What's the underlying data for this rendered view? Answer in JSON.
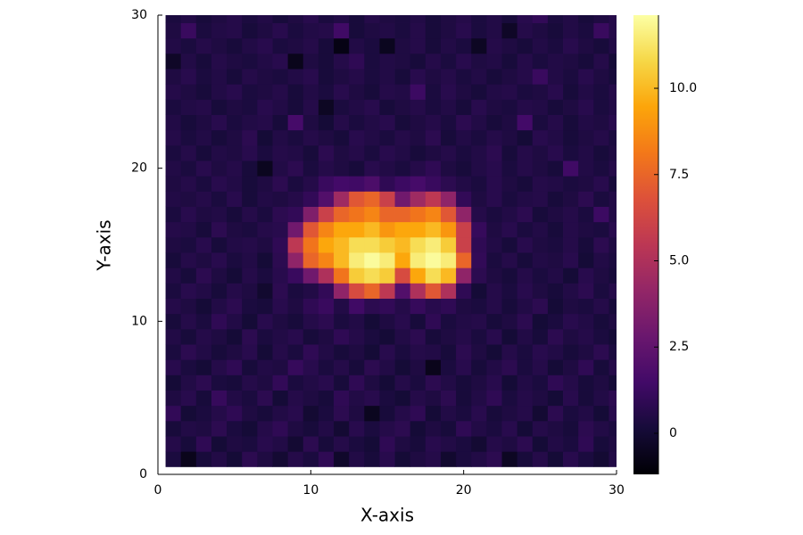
{
  "chart_data": {
    "type": "heatmap",
    "xlabel": "X-axis",
    "ylabel": "Y-axis",
    "colormap": "inferno",
    "x": [
      1,
      2,
      3,
      4,
      5,
      6,
      7,
      8,
      9,
      10,
      11,
      12,
      13,
      14,
      15,
      16,
      17,
      18,
      19,
      20,
      21,
      22,
      23,
      24,
      25,
      26,
      27,
      28,
      29,
      30
    ],
    "y": [
      1,
      2,
      3,
      4,
      5,
      6,
      7,
      8,
      9,
      10,
      11,
      12,
      13,
      14,
      15,
      16,
      17,
      18,
      19,
      20,
      21,
      22,
      23,
      24,
      25,
      26,
      27,
      28,
      29,
      30
    ],
    "z": [
      [
        0.3,
        -0.6,
        0.2,
        0.5,
        0.1,
        0.8,
        0.4,
        0.0,
        0.6,
        0.3,
        0.9,
        -0.2,
        0.5,
        0.2,
        0.7,
        0.1,
        0.4,
        0.6,
        -0.1,
        0.3,
        0.5,
        0.8,
        -0.4,
        0.2,
        0.6,
        0.1,
        0.7,
        0.3,
        0.0,
        0.5
      ],
      [
        0.6,
        0.2,
        0.9,
        0.1,
        0.4,
        0.3,
        0.7,
        0.5,
        0.0,
        0.8,
        0.2,
        0.6,
        0.3,
        0.1,
        0.9,
        0.4,
        0.2,
        0.7,
        0.5,
        0.3,
        0.0,
        0.6,
        0.4,
        0.8,
        0.1,
        0.5,
        0.3,
        0.9,
        0.2,
        0.4
      ],
      [
        0.2,
        0.5,
        0.4,
        0.8,
        0.3,
        0.1,
        0.6,
        0.9,
        0.4,
        0.2,
        0.5,
        0.0,
        0.7,
        0.3,
        0.6,
        0.8,
        0.1,
        0.4,
        0.2,
        0.9,
        0.5,
        0.3,
        0.7,
        0.1,
        0.6,
        0.4,
        0.2,
        0.8,
        0.5,
        0.3
      ],
      [
        1.0,
        0.1,
        0.3,
        0.6,
        0.9,
        0.4,
        0.2,
        0.5,
        0.7,
        0.0,
        0.3,
        0.8,
        0.4,
        -0.5,
        0.2,
        0.6,
        0.9,
        0.1,
        0.5,
        0.3,
        0.7,
        0.2,
        0.4,
        0.6,
        0.0,
        0.8,
        0.3,
        0.5,
        0.1,
        0.7
      ],
      [
        0.4,
        0.7,
        0.2,
        1.1,
        0.5,
        0.3,
        0.8,
        0.1,
        0.6,
        0.4,
        0.2,
        0.9,
        0.5,
        0.7,
        0.3,
        0.1,
        0.6,
        0.4,
        0.8,
        0.2,
        0.5,
        0.9,
        0.3,
        0.6,
        0.4,
        0.1,
        0.7,
        0.2,
        0.5,
        0.8
      ],
      [
        0.1,
        0.5,
        0.8,
        0.3,
        0.2,
        0.6,
        0.4,
        1.0,
        0.3,
        0.5,
        0.7,
        0.2,
        0.9,
        0.4,
        0.1,
        0.6,
        0.3,
        0.8,
        0.5,
        0.2,
        0.4,
        0.7,
        0.1,
        0.5,
        0.3,
        0.9,
        0.6,
        0.2,
        0.4,
        0.1
      ],
      [
        0.7,
        0.3,
        0.1,
        0.6,
        0.9,
        0.2,
        0.5,
        0.4,
        1.1,
        0.7,
        0.3,
        0.6,
        0.2,
        0.8,
        0.5,
        0.1,
        0.4,
        -0.6,
        0.3,
        0.7,
        0.2,
        0.5,
        0.8,
        0.3,
        0.6,
        0.1,
        0.4,
        0.9,
        0.2,
        0.6
      ],
      [
        0.3,
        0.8,
        0.5,
        0.2,
        0.4,
        0.7,
        0.1,
        0.6,
        0.3,
        0.9,
        0.5,
        0.2,
        0.4,
        0.1,
        0.7,
        0.3,
        0.6,
        0.5,
        0.2,
        0.8,
        0.4,
        0.1,
        0.6,
        0.3,
        0.7,
        0.5,
        0.2,
        0.4,
        0.8,
        0.3
      ],
      [
        0.5,
        0.2,
        0.6,
        0.4,
        0.1,
        0.8,
        0.3,
        0.5,
        0.7,
        0.2,
        0.4,
        0.9,
        0.6,
        0.3,
        0.1,
        0.5,
        0.8,
        0.2,
        0.4,
        0.6,
        0.3,
        0.7,
        0.1,
        0.5,
        0.2,
        0.8,
        0.4,
        0.6,
        0.3,
        0.1
      ],
      [
        0.2,
        0.6,
        0.3,
        0.9,
        0.5,
        0.1,
        0.7,
        0.4,
        0.2,
        0.6,
        0.8,
        0.3,
        0.5,
        0.1,
        0.4,
        0.7,
        0.2,
        0.9,
        0.3,
        0.5,
        0.6,
        0.2,
        0.4,
        0.8,
        0.1,
        0.3,
        0.7,
        0.5,
        0.2,
        0.4
      ],
      [
        0.6,
        0.4,
        0.1,
        0.5,
        0.8,
        0.3,
        0.2,
        0.7,
        0.4,
        0.9,
        1.2,
        0.5,
        1.4,
        0.8,
        1.0,
        0.6,
        1.1,
        0.7,
        0.9,
        0.4,
        0.3,
        0.6,
        0.2,
        0.5,
        0.8,
        0.1,
        0.4,
        0.3,
        0.6,
        0.2
      ],
      [
        0.3,
        0.7,
        0.5,
        0.2,
        0.6,
        0.4,
        -0.1,
        0.8,
        0.3,
        0.5,
        1.0,
        4.0,
        6.5,
        7.5,
        5.5,
        2.0,
        5.0,
        7.0,
        5.0,
        0.9,
        0.1,
        0.6,
        0.3,
        0.7,
        0.4,
        0.2,
        0.5,
        0.8,
        0.3,
        0.6
      ],
      [
        0.5,
        0.2,
        0.8,
        0.4,
        0.1,
        0.6,
        0.3,
        0.7,
        1.2,
        3.0,
        5.0,
        8.0,
        10.5,
        11.0,
        10.5,
        6.5,
        9.5,
        11.0,
        10.0,
        4.0,
        0.8,
        0.4,
        0.2,
        0.6,
        0.3,
        0.5,
        0.1,
        0.7,
        0.4,
        0.2
      ],
      [
        0.2,
        0.6,
        0.4,
        0.7,
        0.3,
        0.5,
        0.1,
        0.8,
        4.0,
        7.5,
        8.5,
        10.0,
        11.5,
        12.0,
        11.5,
        9.5,
        11.5,
        12.0,
        11.5,
        7.5,
        1.0,
        0.3,
        0.6,
        0.2,
        0.5,
        0.4,
        0.7,
        0.1,
        0.5,
        0.3
      ],
      [
        0.4,
        0.3,
        0.7,
        0.2,
        0.5,
        0.6,
        0.4,
        0.9,
        5.5,
        8.0,
        9.5,
        10.0,
        11.0,
        11.0,
        10.5,
        10.0,
        11.0,
        11.5,
        10.5,
        6.0,
        0.9,
        0.5,
        0.2,
        0.7,
        0.4,
        0.3,
        0.6,
        0.2,
        0.8,
        0.4
      ],
      [
        0.6,
        0.5,
        0.2,
        0.8,
        0.4,
        0.3,
        0.6,
        0.7,
        3.0,
        7.0,
        8.5,
        9.5,
        9.5,
        10.0,
        9.0,
        9.5,
        9.5,
        10.0,
        9.0,
        6.0,
        1.1,
        0.4,
        0.7,
        0.3,
        0.5,
        0.2,
        0.6,
        0.4,
        0.3,
        0.7
      ],
      [
        0.3,
        0.7,
        0.4,
        0.5,
        0.2,
        0.6,
        0.3,
        0.8,
        1.0,
        3.5,
        6.0,
        7.5,
        8.0,
        8.5,
        7.5,
        7.5,
        8.0,
        8.5,
        7.0,
        4.0,
        0.6,
        0.3,
        0.5,
        0.8,
        0.2,
        0.4,
        0.6,
        0.3,
        1.3,
        0.5
      ],
      [
        0.5,
        0.4,
        0.6,
        0.3,
        0.7,
        0.2,
        0.5,
        0.4,
        0.6,
        1.0,
        2.0,
        4.5,
        7.0,
        7.5,
        6.0,
        3.0,
        4.5,
        5.5,
        4.0,
        1.0,
        0.4,
        0.7,
        0.3,
        0.5,
        0.6,
        0.2,
        0.4,
        0.8,
        0.3,
        0.5
      ],
      [
        0.4,
        0.6,
        0.3,
        0.7,
        0.5,
        0.2,
        0.4,
        0.8,
        0.3,
        0.6,
        1.2,
        1.5,
        1.4,
        1.8,
        0.9,
        1.3,
        1.6,
        1.2,
        0.8,
        0.5,
        0.3,
        0.7,
        0.4,
        0.2,
        0.6,
        0.5,
        0.3,
        0.4,
        0.7,
        0.2
      ],
      [
        0.5,
        0.3,
        0.7,
        0.4,
        0.6,
        0.2,
        -0.5,
        0.5,
        0.8,
        0.3,
        0.6,
        0.4,
        0.2,
        0.7,
        0.5,
        0.3,
        0.6,
        0.9,
        0.4,
        0.2,
        0.5,
        0.7,
        0.3,
        0.6,
        0.4,
        0.2,
        1.4,
        0.5,
        0.3,
        0.6
      ],
      [
        0.3,
        0.6,
        0.2,
        0.5,
        0.4,
        0.7,
        0.3,
        0.6,
        0.5,
        0.2,
        0.8,
        0.4,
        0.6,
        0.3,
        0.7,
        0.5,
        0.2,
        0.4,
        0.6,
        0.3,
        0.5,
        0.8,
        0.2,
        0.6,
        0.4,
        0.7,
        0.3,
        0.5,
        0.2,
        0.4
      ],
      [
        0.6,
        0.3,
        0.5,
        0.2,
        0.4,
        0.8,
        0.1,
        0.5,
        0.3,
        0.6,
        0.4,
        0.2,
        0.7,
        0.5,
        0.3,
        0.6,
        0.4,
        0.8,
        0.2,
        0.5,
        0.3,
        0.6,
        0.4,
        0.1,
        0.7,
        0.5,
        0.2,
        0.4,
        0.6,
        0.3
      ],
      [
        0.5,
        0.2,
        0.4,
        0.7,
        0.3,
        0.5,
        0.6,
        0.2,
        1.6,
        0.4,
        0.1,
        0.6,
        0.3,
        0.5,
        0.7,
        0.2,
        0.4,
        0.6,
        0.3,
        0.8,
        0.5,
        0.2,
        0.4,
        1.5,
        0.3,
        0.6,
        0.2,
        0.5,
        0.4,
        0.7
      ],
      [
        0.3,
        0.5,
        0.6,
        0.2,
        0.4,
        0.3,
        0.7,
        0.5,
        0.2,
        0.6,
        -0.4,
        0.3,
        0.5,
        0.7,
        0.2,
        0.4,
        0.6,
        0.3,
        0.5,
        0.2,
        0.7,
        0.4,
        0.3,
        0.6,
        0.5,
        0.2,
        0.4,
        0.7,
        0.3,
        0.5
      ],
      [
        0.6,
        0.4,
        0.2,
        0.5,
        0.7,
        0.3,
        0.4,
        0.6,
        0.2,
        0.5,
        0.3,
        0.7,
        0.4,
        0.2,
        0.6,
        0.5,
        1.3,
        0.3,
        0.7,
        0.4,
        0.2,
        0.5,
        0.6,
        0.3,
        0.4,
        0.7,
        0.2,
        0.5,
        0.3,
        0.6
      ],
      [
        0.4,
        0.7,
        0.3,
        0.5,
        0.2,
        0.6,
        0.4,
        0.3,
        0.5,
        0.7,
        0.2,
        0.4,
        0.6,
        0.3,
        0.5,
        0.2,
        0.7,
        0.4,
        0.6,
        0.3,
        0.5,
        0.2,
        0.4,
        0.6,
        1.2,
        0.5,
        0.3,
        0.7,
        0.4,
        0.2
      ],
      [
        -0.3,
        0.5,
        0.2,
        0.6,
        0.4,
        0.3,
        0.5,
        0.7,
        -0.6,
        0.4,
        0.2,
        0.6,
        0.9,
        0.3,
        0.5,
        0.4,
        0.2,
        0.6,
        0.3,
        0.7,
        0.4,
        0.5,
        0.2,
        0.6,
        0.3,
        0.5,
        0.4,
        0.2,
        0.6,
        0.1
      ],
      [
        0.5,
        0.3,
        0.6,
        0.4,
        0.2,
        0.5,
        0.7,
        0.3,
        0.4,
        0.6,
        0.2,
        -0.8,
        0.5,
        0.3,
        -0.5,
        0.4,
        0.6,
        0.2,
        0.5,
        0.3,
        -0.4,
        0.6,
        0.4,
        0.2,
        0.5,
        0.3,
        0.7,
        0.4,
        0.2,
        0.5
      ],
      [
        0.4,
        1.2,
        0.3,
        0.5,
        0.6,
        0.2,
        0.4,
        0.7,
        0.3,
        0.5,
        0.6,
        1.4,
        0.2,
        0.4,
        0.5,
        0.3,
        0.6,
        0.2,
        0.4,
        0.7,
        0.3,
        0.5,
        -0.3,
        0.6,
        0.4,
        0.2,
        0.5,
        0.3,
        1.2,
        0.6
      ],
      [
        0.3,
        0.5,
        0.2,
        0.4,
        0.6,
        0.3,
        0.5,
        0.2,
        0.4,
        0.7,
        0.3,
        0.5,
        0.2,
        0.6,
        0.4,
        0.3,
        0.5,
        0.2,
        0.4,
        0.6,
        0.3,
        0.5,
        0.2,
        0.7,
        1.0,
        0.3,
        0.5,
        0.2,
        0.4,
        0.6
      ]
    ],
    "xlim": [
      0,
      30
    ],
    "ylim": [
      0,
      30
    ],
    "xticks": [
      0,
      10,
      20,
      30
    ],
    "yticks": [
      0,
      10,
      20,
      30
    ],
    "clim": [
      -1.19,
      12.12
    ],
    "colorbar_ticks": [
      0,
      2.5,
      {
        "value": 5,
        "label": "5.0"
      },
      7.5,
      {
        "value": 10,
        "label": "10.0"
      }
    ]
  }
}
